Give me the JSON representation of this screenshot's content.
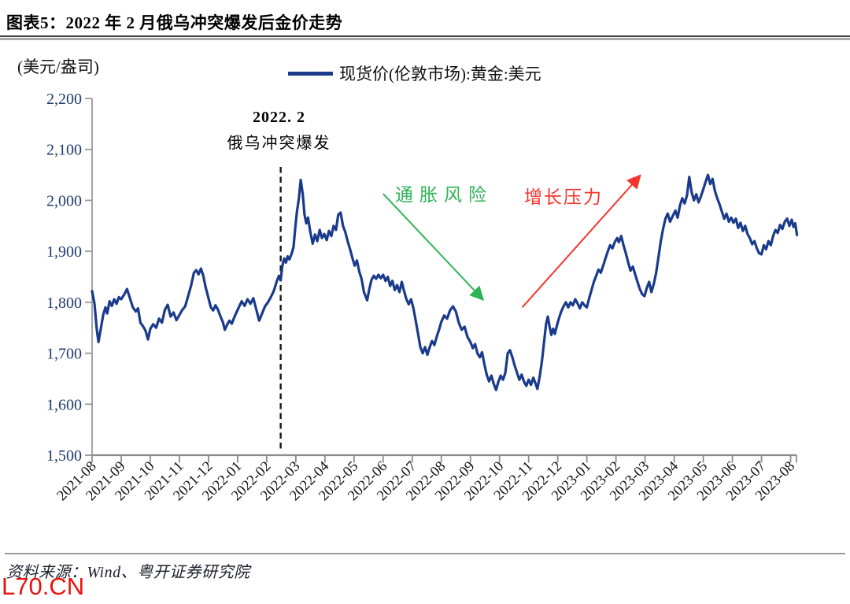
{
  "header": {
    "title": "图表5：2022 年 2 月俄乌冲突爆发后金价走势"
  },
  "footer": {
    "source": "资料来源：Wind、粤开证券研究院",
    "watermark": "L70.CN"
  },
  "chart_data": {
    "type": "line",
    "title": "2022年2月俄乌冲突爆发后金价走势",
    "ylabel": "(美元/盎司)",
    "xlabel": "",
    "ylim": [
      1500,
      2200
    ],
    "yticks": [
      1500,
      1600,
      1700,
      1800,
      1900,
      2000,
      2100,
      2200
    ],
    "grid": false,
    "legend_position": "top",
    "categories": [
      "2021-08",
      "2021-09",
      "2021-10",
      "2021-11",
      "2021-12",
      "2022-01",
      "2022-02",
      "2022-03",
      "2022-04",
      "2022-05",
      "2022-06",
      "2022-07",
      "2022-08",
      "2022-09",
      "2022-10",
      "2022-11",
      "2022-12",
      "2023-01",
      "2023-02",
      "2023-03",
      "2023-04",
      "2023-05",
      "2023-06",
      "2023-07",
      "2023-08"
    ],
    "event_line": {
      "month_index": 6.48,
      "style": "dashed-black",
      "label_line1": "2022. 2",
      "label_line2": "俄乌冲突爆发"
    },
    "annotations": [
      {
        "id": "inflation-risk",
        "text": "通胀风险",
        "color": "#2eb457",
        "arrow_from": [
          10.0,
          2013
        ],
        "arrow_to": [
          13.42,
          1806
        ]
      },
      {
        "id": "growth-pressure",
        "text": "增长压力",
        "color": "#f5342e",
        "arrow_from": [
          14.78,
          1790
        ],
        "arrow_to": [
          18.82,
          2048
        ]
      }
    ],
    "series": [
      {
        "name": "现货价(伦敦市场):黄金:美元",
        "color": "#1a3a8c",
        "points": [
          [
            0,
            1822
          ],
          [
            0.08,
            1798
          ],
          [
            0.16,
            1748
          ],
          [
            0.22,
            1722
          ],
          [
            0.3,
            1748
          ],
          [
            0.38,
            1775
          ],
          [
            0.46,
            1790
          ],
          [
            0.52,
            1778
          ],
          [
            0.6,
            1802
          ],
          [
            0.68,
            1793
          ],
          [
            0.76,
            1806
          ],
          [
            0.84,
            1797
          ],
          [
            0.92,
            1810
          ],
          [
            1,
            1806
          ],
          [
            1.1,
            1815
          ],
          [
            1.2,
            1826
          ],
          [
            1.3,
            1808
          ],
          [
            1.4,
            1790
          ],
          [
            1.5,
            1782
          ],
          [
            1.58,
            1788
          ],
          [
            1.66,
            1760
          ],
          [
            1.76,
            1752
          ],
          [
            1.84,
            1744
          ],
          [
            1.92,
            1727
          ],
          [
            2,
            1748
          ],
          [
            2.1,
            1757
          ],
          [
            2.2,
            1750
          ],
          [
            2.3,
            1768
          ],
          [
            2.4,
            1760
          ],
          [
            2.5,
            1785
          ],
          [
            2.6,
            1795
          ],
          [
            2.7,
            1772
          ],
          [
            2.8,
            1780
          ],
          [
            2.9,
            1765
          ],
          [
            3,
            1775
          ],
          [
            3.1,
            1785
          ],
          [
            3.2,
            1792
          ],
          [
            3.3,
            1812
          ],
          [
            3.4,
            1832
          ],
          [
            3.5,
            1858
          ],
          [
            3.58,
            1863
          ],
          [
            3.66,
            1855
          ],
          [
            3.74,
            1866
          ],
          [
            3.82,
            1852
          ],
          [
            3.9,
            1830
          ],
          [
            4,
            1808
          ],
          [
            4.08,
            1790
          ],
          [
            4.16,
            1784
          ],
          [
            4.24,
            1794
          ],
          [
            4.32,
            1786
          ],
          [
            4.4,
            1774
          ],
          [
            4.5,
            1760
          ],
          [
            4.56,
            1746
          ],
          [
            4.64,
            1756
          ],
          [
            4.72,
            1764
          ],
          [
            4.8,
            1758
          ],
          [
            4.88,
            1770
          ],
          [
            4.96,
            1780
          ],
          [
            5.04,
            1790
          ],
          [
            5.14,
            1802
          ],
          [
            5.24,
            1793
          ],
          [
            5.34,
            1806
          ],
          [
            5.44,
            1797
          ],
          [
            5.54,
            1808
          ],
          [
            5.64,
            1786
          ],
          [
            5.74,
            1764
          ],
          [
            5.84,
            1778
          ],
          [
            5.94,
            1792
          ],
          [
            6.04,
            1800
          ],
          [
            6.14,
            1810
          ],
          [
            6.24,
            1822
          ],
          [
            6.34,
            1840
          ],
          [
            6.42,
            1852
          ],
          [
            6.48,
            1843
          ],
          [
            6.54,
            1872
          ],
          [
            6.6,
            1886
          ],
          [
            6.66,
            1878
          ],
          [
            6.72,
            1890
          ],
          [
            6.78,
            1884
          ],
          [
            6.86,
            1896
          ],
          [
            6.92,
            1908
          ],
          [
            6.98,
            1945
          ],
          [
            7.04,
            1978
          ],
          [
            7.1,
            2002
          ],
          [
            7.17,
            2040
          ],
          [
            7.24,
            2012
          ],
          [
            7.3,
            1972
          ],
          [
            7.36,
            1955
          ],
          [
            7.42,
            1966
          ],
          [
            7.5,
            1938
          ],
          [
            7.58,
            1915
          ],
          [
            7.66,
            1933
          ],
          [
            7.74,
            1920
          ],
          [
            7.82,
            1942
          ],
          [
            7.9,
            1926
          ],
          [
            7.98,
            1934
          ],
          [
            8.06,
            1922
          ],
          [
            8.14,
            1940
          ],
          [
            8.22,
            1930
          ],
          [
            8.3,
            1950
          ],
          [
            8.38,
            1942
          ],
          [
            8.46,
            1972
          ],
          [
            8.54,
            1976
          ],
          [
            8.62,
            1950
          ],
          [
            8.7,
            1938
          ],
          [
            8.78,
            1920
          ],
          [
            8.86,
            1905
          ],
          [
            8.94,
            1888
          ],
          [
            9.02,
            1872
          ],
          [
            9.1,
            1882
          ],
          [
            9.18,
            1860
          ],
          [
            9.26,
            1846
          ],
          [
            9.34,
            1820
          ],
          [
            9.45,
            1804
          ],
          [
            9.52,
            1824
          ],
          [
            9.6,
            1844
          ],
          [
            9.68,
            1852
          ],
          [
            9.76,
            1846
          ],
          [
            9.84,
            1854
          ],
          [
            9.92,
            1847
          ],
          [
            10,
            1854
          ],
          [
            10.08,
            1842
          ],
          [
            10.16,
            1850
          ],
          [
            10.24,
            1832
          ],
          [
            10.32,
            1842
          ],
          [
            10.4,
            1824
          ],
          [
            10.48,
            1834
          ],
          [
            10.56,
            1820
          ],
          [
            10.64,
            1840
          ],
          [
            10.72,
            1822
          ],
          [
            10.8,
            1806
          ],
          [
            10.88,
            1796
          ],
          [
            10.96,
            1806
          ],
          [
            11.04,
            1788
          ],
          [
            11.12,
            1764
          ],
          [
            11.2,
            1738
          ],
          [
            11.28,
            1712
          ],
          [
            11.36,
            1700
          ],
          [
            11.44,
            1712
          ],
          [
            11.52,
            1697
          ],
          [
            11.6,
            1712
          ],
          [
            11.68,
            1724
          ],
          [
            11.76,
            1716
          ],
          [
            11.84,
            1732
          ],
          [
            11.92,
            1746
          ],
          [
            12,
            1762
          ],
          [
            12.1,
            1774
          ],
          [
            12.2,
            1768
          ],
          [
            12.3,
            1784
          ],
          [
            12.4,
            1792
          ],
          [
            12.5,
            1782
          ],
          [
            12.6,
            1760
          ],
          [
            12.7,
            1746
          ],
          [
            12.8,
            1752
          ],
          [
            12.9,
            1732
          ],
          [
            13,
            1722
          ],
          [
            13.08,
            1710
          ],
          [
            13.16,
            1718
          ],
          [
            13.24,
            1700
          ],
          [
            13.32,
            1692
          ],
          [
            13.4,
            1702
          ],
          [
            13.48,
            1678
          ],
          [
            13.56,
            1658
          ],
          [
            13.64,
            1645
          ],
          [
            13.72,
            1656
          ],
          [
            13.8,
            1640
          ],
          [
            13.88,
            1628
          ],
          [
            13.96,
            1644
          ],
          [
            14.04,
            1656
          ],
          [
            14.12,
            1648
          ],
          [
            14.2,
            1662
          ],
          [
            14.28,
            1700
          ],
          [
            14.36,
            1706
          ],
          [
            14.44,
            1692
          ],
          [
            14.52,
            1676
          ],
          [
            14.6,
            1662
          ],
          [
            14.68,
            1648
          ],
          [
            14.76,
            1658
          ],
          [
            14.84,
            1644
          ],
          [
            14.92,
            1636
          ],
          [
            15,
            1648
          ],
          [
            15.08,
            1638
          ],
          [
            15.16,
            1652
          ],
          [
            15.24,
            1640
          ],
          [
            15.3,
            1630
          ],
          [
            15.38,
            1654
          ],
          [
            15.46,
            1686
          ],
          [
            15.54,
            1728
          ],
          [
            15.6,
            1758
          ],
          [
            15.66,
            1772
          ],
          [
            15.72,
            1752
          ],
          [
            15.78,
            1736
          ],
          [
            15.84,
            1748
          ],
          [
            15.9,
            1738
          ],
          [
            15.96,
            1752
          ],
          [
            16.04,
            1768
          ],
          [
            16.12,
            1782
          ],
          [
            16.2,
            1792
          ],
          [
            16.28,
            1800
          ],
          [
            16.36,
            1790
          ],
          [
            16.44,
            1800
          ],
          [
            16.52,
            1794
          ],
          [
            16.6,
            1806
          ],
          [
            16.68,
            1798
          ],
          [
            16.76,
            1788
          ],
          [
            16.84,
            1800
          ],
          [
            16.92,
            1794
          ],
          [
            17,
            1790
          ],
          [
            17.08,
            1808
          ],
          [
            17.16,
            1824
          ],
          [
            17.24,
            1840
          ],
          [
            17.32,
            1852
          ],
          [
            17.4,
            1864
          ],
          [
            17.48,
            1858
          ],
          [
            17.56,
            1872
          ],
          [
            17.64,
            1886
          ],
          [
            17.72,
            1900
          ],
          [
            17.8,
            1912
          ],
          [
            17.88,
            1906
          ],
          [
            17.96,
            1918
          ],
          [
            18.04,
            1926
          ],
          [
            18.1,
            1918
          ],
          [
            18.18,
            1930
          ],
          [
            18.26,
            1912
          ],
          [
            18.34,
            1896
          ],
          [
            18.42,
            1878
          ],
          [
            18.5,
            1862
          ],
          [
            18.58,
            1870
          ],
          [
            18.66,
            1855
          ],
          [
            18.74,
            1840
          ],
          [
            18.82,
            1826
          ],
          [
            18.9,
            1816
          ],
          [
            18.98,
            1812
          ],
          [
            19.06,
            1828
          ],
          [
            19.14,
            1840
          ],
          [
            19.22,
            1820
          ],
          [
            19.3,
            1836
          ],
          [
            19.38,
            1858
          ],
          [
            19.46,
            1888
          ],
          [
            19.54,
            1920
          ],
          [
            19.62,
            1944
          ],
          [
            19.7,
            1964
          ],
          [
            19.78,
            1974
          ],
          [
            19.86,
            1958
          ],
          [
            19.94,
            1968
          ],
          [
            20.04,
            1980
          ],
          [
            20.12,
            1966
          ],
          [
            20.2,
            1990
          ],
          [
            20.28,
            2004
          ],
          [
            20.36,
            1994
          ],
          [
            20.44,
            2010
          ],
          [
            20.52,
            2046
          ],
          [
            20.6,
            2016
          ],
          [
            20.68,
            2000
          ],
          [
            20.76,
            2012
          ],
          [
            20.84,
            1996
          ],
          [
            20.92,
            2008
          ],
          [
            21,
            2022
          ],
          [
            21.08,
            2036
          ],
          [
            21.16,
            2050
          ],
          [
            21.24,
            2032
          ],
          [
            21.32,
            2042
          ],
          [
            21.4,
            2018
          ],
          [
            21.48,
            2004
          ],
          [
            21.56,
            1992
          ],
          [
            21.64,
            1978
          ],
          [
            21.72,
            1964
          ],
          [
            21.8,
            1974
          ],
          [
            21.88,
            1958
          ],
          [
            21.96,
            1966
          ],
          [
            22.04,
            1956
          ],
          [
            22.12,
            1964
          ],
          [
            22.2,
            1946
          ],
          [
            22.28,
            1956
          ],
          [
            22.36,
            1940
          ],
          [
            22.44,
            1950
          ],
          [
            22.52,
            1934
          ],
          [
            22.6,
            1926
          ],
          [
            22.68,
            1914
          ],
          [
            22.76,
            1920
          ],
          [
            22.84,
            1906
          ],
          [
            22.92,
            1896
          ],
          [
            23,
            1894
          ],
          [
            23.08,
            1912
          ],
          [
            23.16,
            1904
          ],
          [
            23.24,
            1920
          ],
          [
            23.32,
            1912
          ],
          [
            23.4,
            1930
          ],
          [
            23.48,
            1942
          ],
          [
            23.56,
            1936
          ],
          [
            23.64,
            1952
          ],
          [
            23.72,
            1944
          ],
          [
            23.8,
            1958
          ],
          [
            23.88,
            1964
          ],
          [
            23.96,
            1950
          ],
          [
            24.04,
            1962
          ],
          [
            24.1,
            1948
          ],
          [
            24.16,
            1955
          ],
          [
            24.22,
            1932
          ]
        ]
      }
    ]
  }
}
